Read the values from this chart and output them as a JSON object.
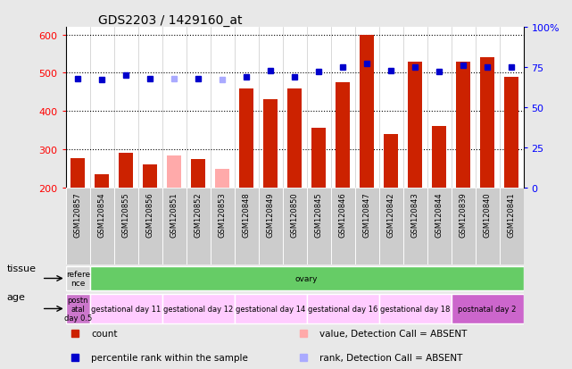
{
  "title": "GDS2203 / 1429160_at",
  "samples": [
    "GSM120857",
    "GSM120854",
    "GSM120855",
    "GSM120856",
    "GSM120851",
    "GSM120852",
    "GSM120853",
    "GSM120848",
    "GSM120849",
    "GSM120850",
    "GSM120845",
    "GSM120846",
    "GSM120847",
    "GSM120842",
    "GSM120843",
    "GSM120844",
    "GSM120839",
    "GSM120840",
    "GSM120841"
  ],
  "count_values": [
    278,
    235,
    292,
    260,
    283,
    275,
    250,
    460,
    432,
    460,
    357,
    475,
    600,
    340,
    530,
    360,
    530,
    540,
    490
  ],
  "count_absent": [
    false,
    false,
    false,
    false,
    true,
    false,
    true,
    false,
    false,
    false,
    false,
    false,
    false,
    false,
    false,
    false,
    false,
    false,
    false
  ],
  "percentile_values": [
    68,
    67,
    70,
    68,
    68,
    68,
    67,
    69,
    73,
    69,
    72,
    75,
    77,
    73,
    75,
    72,
    76,
    75,
    75
  ],
  "percentile_absent": [
    false,
    false,
    false,
    false,
    true,
    false,
    true,
    false,
    false,
    false,
    false,
    false,
    false,
    false,
    false,
    false,
    false,
    false,
    false
  ],
  "ylim_left": [
    200,
    620
  ],
  "ylim_right": [
    0,
    100
  ],
  "yticks_left": [
    200,
    300,
    400,
    500,
    600
  ],
  "yticks_right": [
    0,
    25,
    50,
    75,
    100
  ],
  "ytick_right_labels": [
    "0",
    "25",
    "50",
    "75",
    "100%"
  ],
  "bar_color_present": "#cc2200",
  "bar_color_absent": "#ffaaaa",
  "dot_color_present": "#0000cc",
  "dot_color_absent": "#aaaaff",
  "tissue_groups": [
    {
      "label": "refere\nnce",
      "start": 0,
      "end": 1,
      "color": "#d8d8d8"
    },
    {
      "label": "ovary",
      "start": 1,
      "end": 19,
      "color": "#66cc66"
    }
  ],
  "age_groups": [
    {
      "label": "postn\natal\nday 0.5",
      "start": 0,
      "end": 1,
      "color": "#cc77cc"
    },
    {
      "label": "gestational day 11",
      "start": 1,
      "end": 4,
      "color": "#ffccff"
    },
    {
      "label": "gestational day 12",
      "start": 4,
      "end": 7,
      "color": "#ffccff"
    },
    {
      "label": "gestational day 14",
      "start": 7,
      "end": 10,
      "color": "#ffccff"
    },
    {
      "label": "gestational day 16",
      "start": 10,
      "end": 13,
      "color": "#ffccff"
    },
    {
      "label": "gestational day 18",
      "start": 13,
      "end": 16,
      "color": "#ffccff"
    },
    {
      "label": "postnatal day 2",
      "start": 16,
      "end": 19,
      "color": "#cc66cc"
    }
  ],
  "tissue_label": "tissue",
  "age_label": "age",
  "legend_items": [
    {
      "color": "#cc2200",
      "label": "count",
      "col": 0
    },
    {
      "color": "#0000cc",
      "label": "percentile rank within the sample",
      "col": 0
    },
    {
      "color": "#ffaaaa",
      "label": "value, Detection Call = ABSENT",
      "col": 1
    },
    {
      "color": "#aaaaff",
      "label": "rank, Detection Call = ABSENT",
      "col": 1
    }
  ],
  "bg_color": "#e8e8e8",
  "col_bg_alt": "#cccccc"
}
